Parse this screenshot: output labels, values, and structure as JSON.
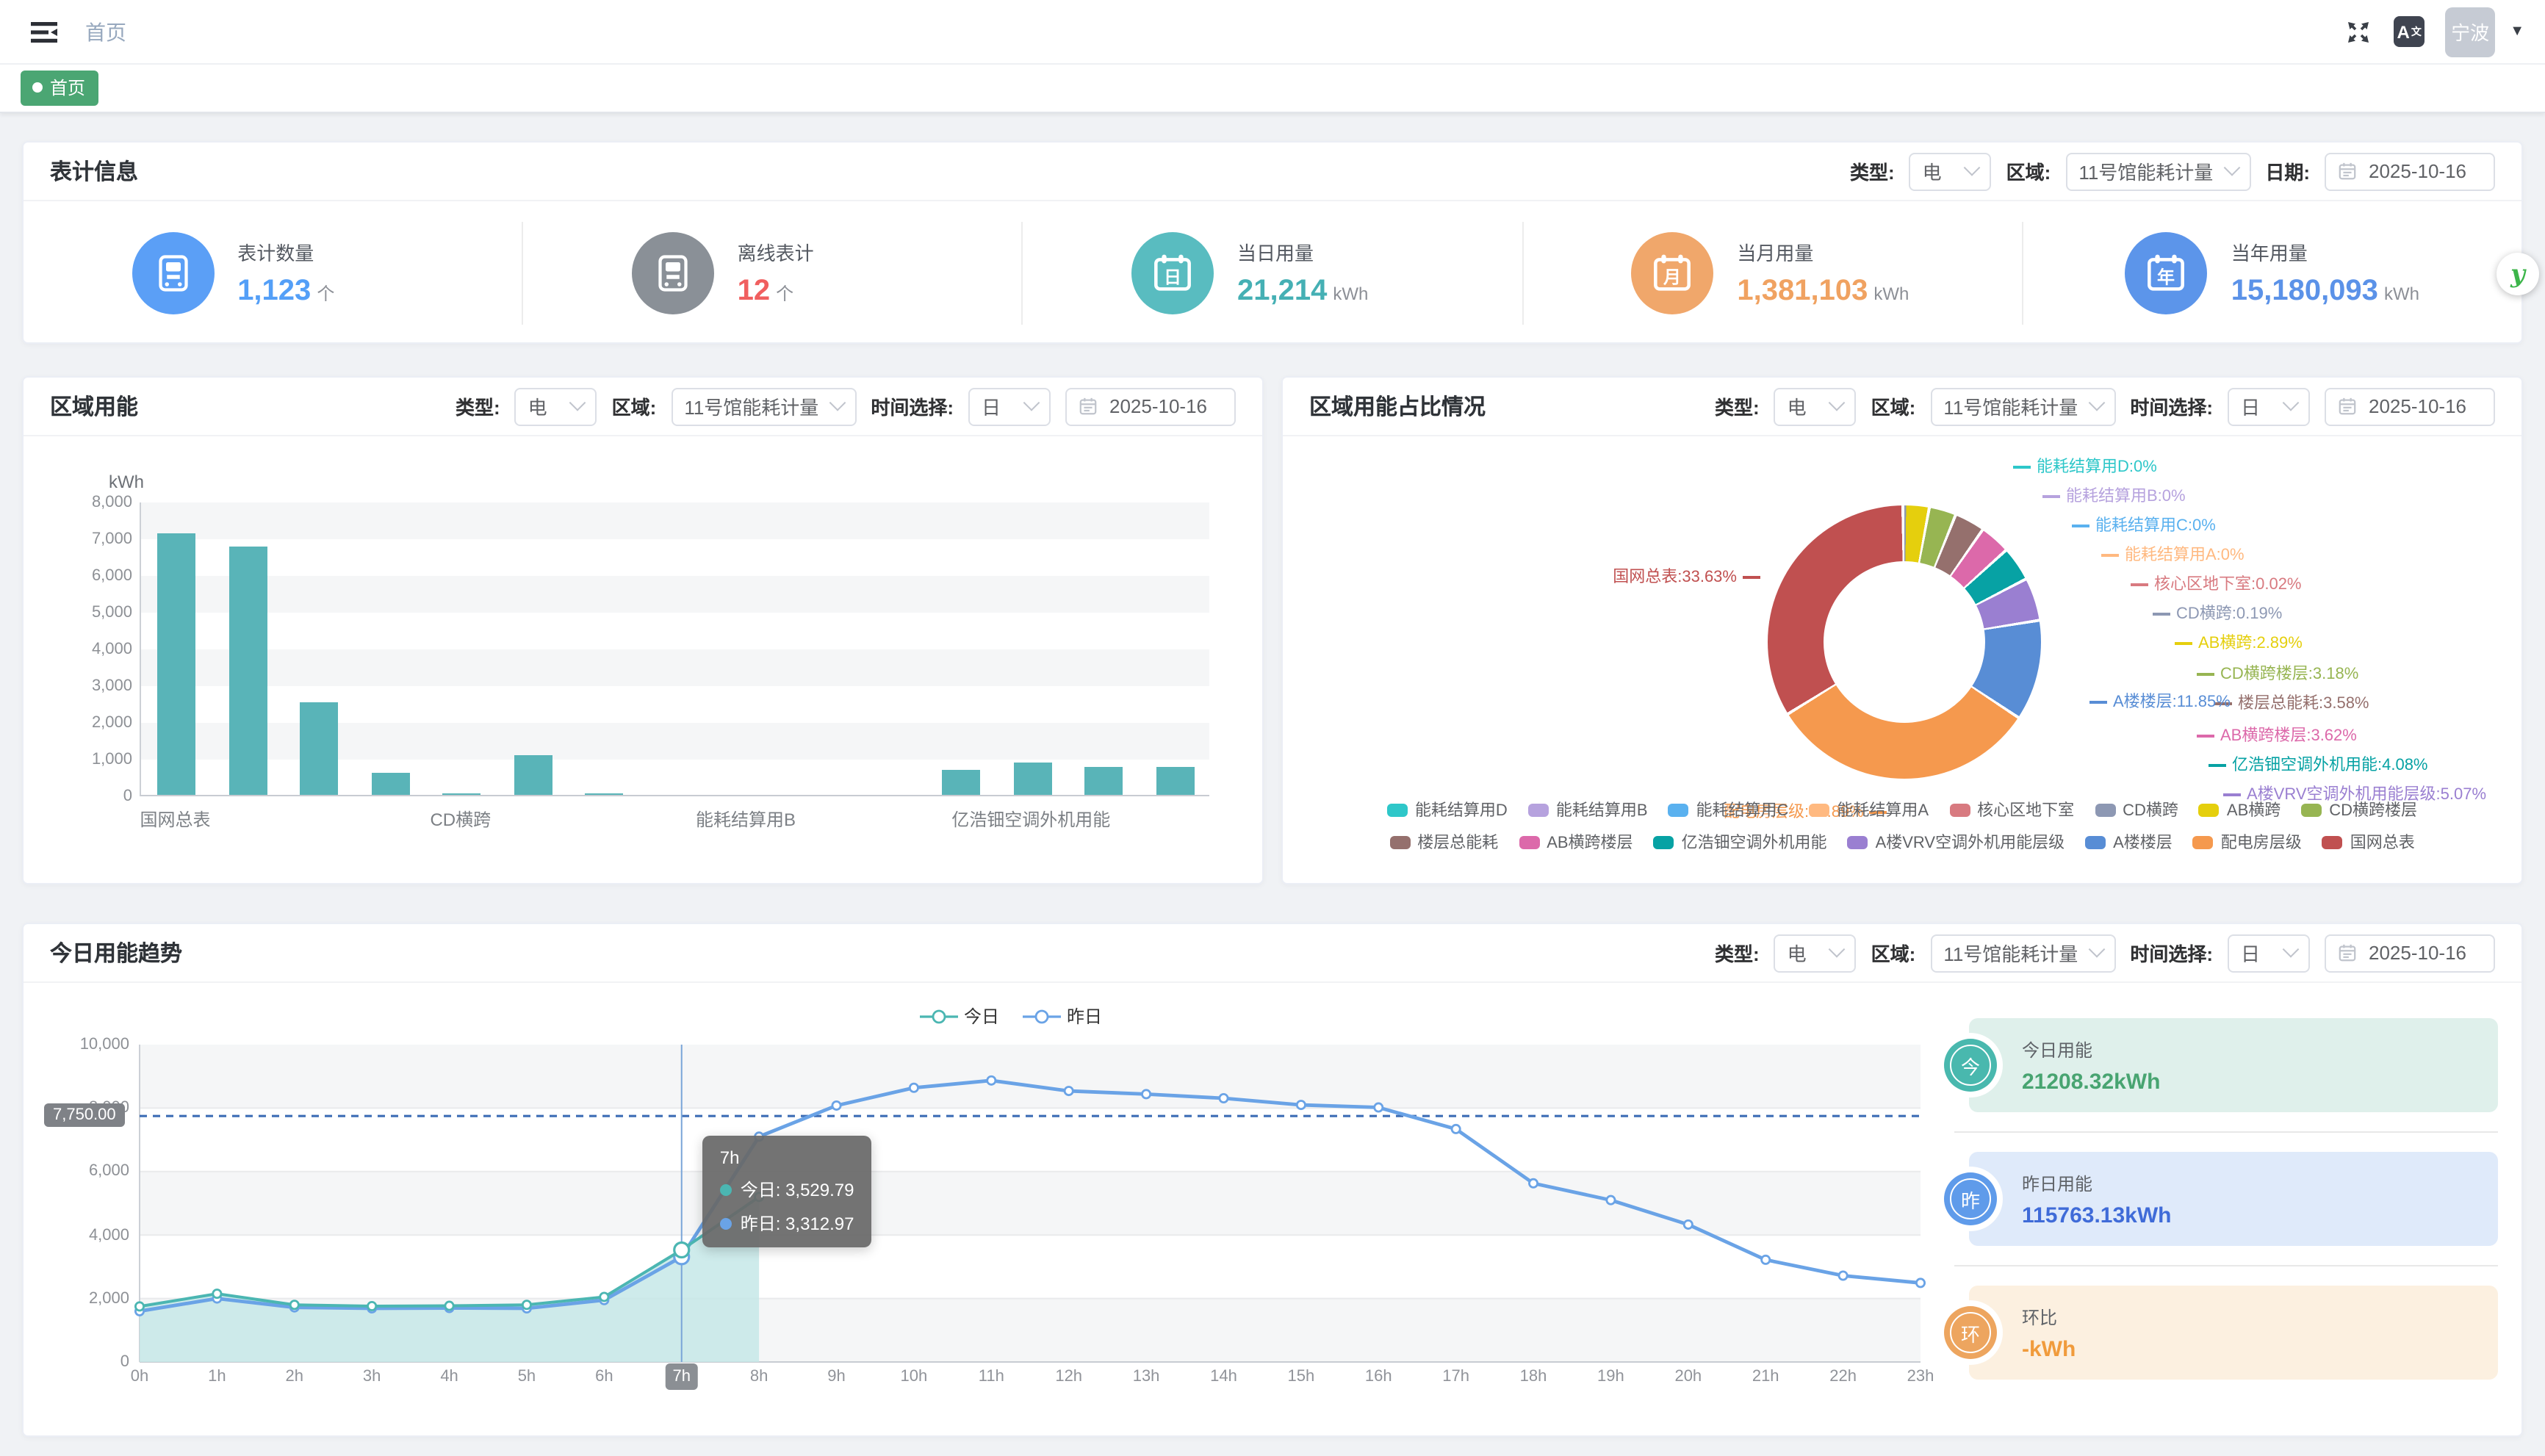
{
  "topbar": {
    "breadcrumb": "首页",
    "user": "宁波"
  },
  "tagsview": {
    "active_tag": "首页"
  },
  "float_button": {
    "label": "y",
    "color": "#3cb54a"
  },
  "panels": {
    "meter_info": {
      "title": "表计信息",
      "filters": [
        {
          "label": "类型:",
          "type": "select",
          "value": "电",
          "size": "sm",
          "name": "type-select"
        },
        {
          "label": "区域:",
          "type": "select",
          "value": "11号馆能耗计量",
          "size": "lg",
          "name": "region-select"
        },
        {
          "label": "日期:",
          "type": "date",
          "value": "2025-10-16",
          "name": "date-picker"
        }
      ],
      "stats": [
        {
          "label": "表计数量",
          "value": "1,123",
          "unit": "个",
          "value_color": "#549ff7",
          "icon": "meter",
          "icon_bg": "#5b9ff6"
        },
        {
          "label": "离线表计",
          "value": "12",
          "unit": "个",
          "value_color": "#f05f5f",
          "icon": "meter",
          "icon_bg": "#8a9097"
        },
        {
          "label": "当日用量",
          "value": "21,214",
          "unit": "kWh",
          "value_color": "#45b0b4",
          "icon": "cal",
          "icon_char": "日",
          "icon_bg": "#59bcc0"
        },
        {
          "label": "当月用量",
          "value": "1,381,103",
          "unit": "kWh",
          "value_color": "#f0a261",
          "icon": "cal",
          "icon_char": "月",
          "icon_bg": "#f0a76b"
        },
        {
          "label": "当年用量",
          "value": "15,180,093",
          "unit": "kWh",
          "value_color": "#5b92e8",
          "icon": "cal",
          "icon_char": "年",
          "icon_bg": "#5c95ea"
        }
      ]
    },
    "region_energy": {
      "title": "区域用能",
      "filters": [
        {
          "label": "类型:",
          "type": "select",
          "value": "电",
          "size": "sm",
          "name": "type-select"
        },
        {
          "label": "区域:",
          "type": "select",
          "value": "11号馆能耗计量",
          "size": "lg",
          "name": "region-select"
        },
        {
          "label": "时间选择:",
          "type": "select",
          "value": "日",
          "size": "sm",
          "name": "time-granularity-select"
        },
        {
          "label": "",
          "type": "date",
          "value": "2025-10-16",
          "name": "date-picker"
        }
      ]
    },
    "region_ratio": {
      "title": "区域用能占比情况",
      "filters": [
        {
          "label": "类型:",
          "type": "select",
          "value": "电",
          "size": "sm",
          "name": "type-select"
        },
        {
          "label": "区域:",
          "type": "select",
          "value": "11号馆能耗计量",
          "size": "lg",
          "name": "region-select"
        },
        {
          "label": "时间选择:",
          "type": "select",
          "value": "日",
          "size": "sm",
          "name": "time-granularity-select"
        },
        {
          "label": "",
          "type": "date",
          "value": "2025-10-16",
          "name": "date-picker"
        }
      ]
    },
    "trend": {
      "title": "今日用能趋势",
      "filters": [
        {
          "label": "类型:",
          "type": "select",
          "value": "电",
          "size": "sm",
          "name": "type-select"
        },
        {
          "label": "区域:",
          "type": "select",
          "value": "11号馆能耗计量",
          "size": "lg",
          "name": "region-select"
        },
        {
          "label": "时间选择:",
          "type": "select",
          "value": "日",
          "size": "sm",
          "name": "time-granularity-select"
        },
        {
          "label": "",
          "type": "date",
          "value": "2025-10-16",
          "name": "date-picker"
        }
      ],
      "cards": [
        {
          "badge": "今",
          "badge_color": "#49b8ae",
          "bg": "#dff0eb",
          "label": "今日用能",
          "value": "21208.32kWh",
          "value_color": "#48a471"
        },
        {
          "badge": "昨",
          "badge_color": "#5f9bea",
          "bg": "#dfeafa",
          "label": "昨日用能",
          "value": "115763.13kWh",
          "value_color": "#3f6bd8"
        },
        {
          "badge": "环",
          "badge_color": "#eda55f",
          "bg": "#fcf0e0",
          "label": "环比",
          "value": "-kWh",
          "value_color": "#f09b3c"
        }
      ]
    }
  },
  "chart_data": [
    {
      "id": "region_energy_bar",
      "type": "bar",
      "title": "区域用能",
      "ylabel": "kWh",
      "ylim": [
        0,
        8000
      ],
      "ytick_step": 1000,
      "bar_color": "#59b4b8",
      "grid": "striped",
      "categories": [
        "国网总表",
        "配电房层级",
        "A楼楼层",
        "AB横跨",
        "CD横跨",
        "A楼VRV空调外机用能层级",
        "核心区地下室",
        "能耗结算用A",
        "能耗结算用B",
        "能耗结算用C",
        "能耗结算用D",
        "CD横跨楼层",
        "亿浩钿空调外机用能",
        "楼层总能耗",
        "AB横跨楼层"
      ],
      "values": [
        7133,
        6763,
        2513,
        613,
        40,
        1075,
        4,
        0,
        0,
        0,
        0,
        674,
        865,
        759,
        768
      ],
      "visible_tick_indices": [
        0,
        4,
        8,
        12
      ]
    },
    {
      "id": "region_ratio_donut",
      "type": "pie",
      "title": "区域用能占比情况",
      "slices": [
        {
          "name": "能耗结算用D",
          "pct": 0,
          "pct_label": "0%",
          "color": "#2ec7c9"
        },
        {
          "name": "能耗结算用B",
          "pct": 0,
          "pct_label": "0%",
          "color": "#b6a2de"
        },
        {
          "name": "能耗结算用C",
          "pct": 0,
          "pct_label": "0%",
          "color": "#5ab1ef"
        },
        {
          "name": "能耗结算用A",
          "pct": 0,
          "pct_label": "0%",
          "color": "#ffb980"
        },
        {
          "name": "核心区地下室",
          "pct": 0.02,
          "pct_label": "0.02%",
          "color": "#d87a80"
        },
        {
          "name": "CD横跨",
          "pct": 0.19,
          "pct_label": "0.19%",
          "color": "#8d98b3"
        },
        {
          "name": "AB横跨",
          "pct": 2.89,
          "pct_label": "2.89%",
          "color": "#e5cf0d"
        },
        {
          "name": "CD横跨楼层",
          "pct": 3.18,
          "pct_label": "3.18%",
          "color": "#97b552"
        },
        {
          "name": "楼层总能耗",
          "pct": 3.58,
          "pct_label": "3.58%",
          "color": "#95706d"
        },
        {
          "name": "AB横跨楼层",
          "pct": 3.62,
          "pct_label": "3.62%",
          "color": "#dc69aa"
        },
        {
          "name": "亿浩钿空调外机用能",
          "pct": 4.08,
          "pct_label": "4.08%",
          "color": "#07a2a4"
        },
        {
          "name": "A楼VRV空调外机用能层级",
          "pct": 5.07,
          "pct_label": "5.07%",
          "color": "#9a7fd1"
        },
        {
          "name": "A楼楼层",
          "pct": 11.85,
          "pct_label": "11.85%",
          "color": "#588dd5"
        },
        {
          "name": "配电房层级",
          "pct": 31.89,
          "pct_label": "31.89%",
          "color": "#f5994e"
        },
        {
          "name": "国网总表",
          "pct": 33.63,
          "pct_label": "33.63%",
          "color": "#c05050"
        }
      ],
      "legend_rows": [
        [
          "能耗结算用D",
          "能耗结算用B",
          "能耗结算用C",
          "能耗结算用A",
          "核心区地下室",
          "CD横跨",
          "AB横跨",
          "CD横跨楼层"
        ],
        [
          "楼层总能耗",
          "AB横跨楼层",
          "亿浩钿空调外机用能",
          "A楼VRV空调外机用能层级",
          "A楼楼层",
          "配电房层级",
          "国网总表"
        ]
      ]
    },
    {
      "id": "trend_line",
      "type": "line",
      "title": "今日用能趋势",
      "x": [
        "0h",
        "1h",
        "2h",
        "3h",
        "4h",
        "5h",
        "6h",
        "7h",
        "8h",
        "9h",
        "10h",
        "11h",
        "12h",
        "13h",
        "14h",
        "15h",
        "16h",
        "17h",
        "18h",
        "19h",
        "20h",
        "21h",
        "22h",
        "23h"
      ],
      "ylim": [
        0,
        10000
      ],
      "ytick_step": 2000,
      "series": [
        {
          "name": "今日",
          "color": "#4bb6b2",
          "area": true,
          "values": [
            1750,
            2150,
            1800,
            1760,
            1770,
            1800,
            2050,
            3529.79,
            5200
          ]
        },
        {
          "name": "昨日",
          "color": "#6aa3e6",
          "area": false,
          "values": [
            1600,
            2000,
            1720,
            1690,
            1700,
            1690,
            1950,
            3312.97,
            7100,
            8080,
            8640,
            8870,
            8540,
            8440,
            8310,
            8100,
            8020,
            7340,
            5630,
            5100,
            4330,
            3220,
            2720,
            2490
          ]
        }
      ],
      "markline": {
        "value": 7750,
        "label": "7,750.00",
        "color": "#3d6db5"
      },
      "highlighted_x": "7h",
      "tooltip": {
        "title": "7h",
        "rows": [
          {
            "name": "今日",
            "value_label": "今日: 3,529.79",
            "color": "#4bb6b2"
          },
          {
            "name": "昨日",
            "value_label": "昨日: 3,312.97",
            "color": "#6aa3e6"
          }
        ]
      }
    }
  ]
}
